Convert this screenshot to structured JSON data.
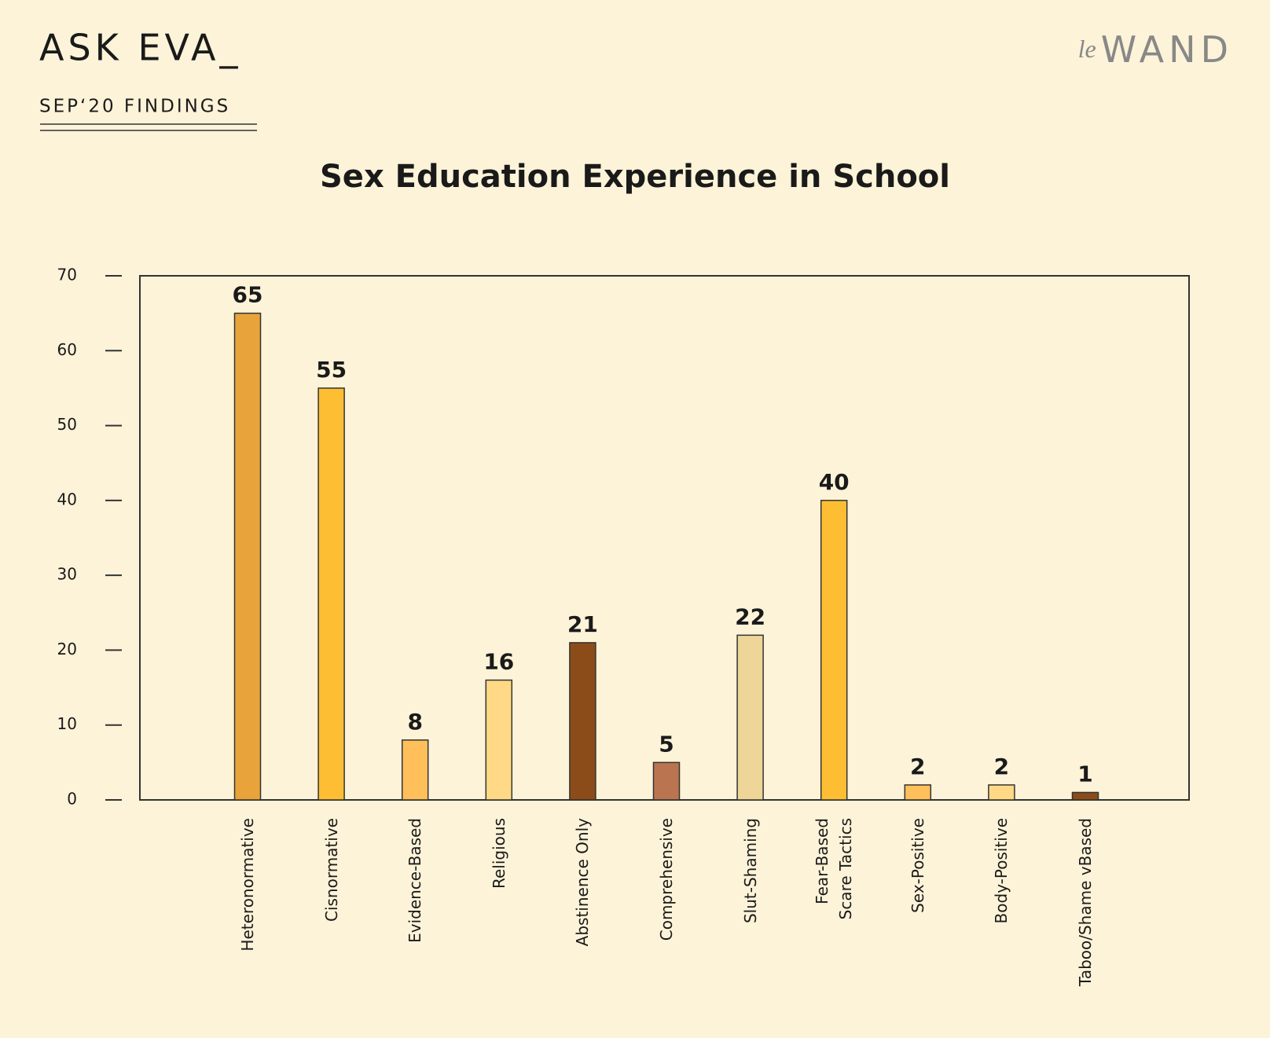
{
  "header": {
    "brand": "ASK EVA_",
    "subtitle": "SEP‘20 FINDINGS",
    "logo_prefix": "le",
    "logo": "WAND"
  },
  "chart_data": {
    "type": "bar",
    "title": "Sex Education Experience in School",
    "categories": [
      "Heteronormative",
      "Cisnormative",
      "Evidence-Based",
      "Religious",
      "Abstinence Only",
      "Comprehensive",
      "Slut-Shaming",
      "Fear-Based\nScare Tactics",
      "Sex-Positive",
      "Body-Positive",
      "Taboo/Shame vBased"
    ],
    "values": [
      65,
      55,
      8,
      16,
      21,
      5,
      22,
      40,
      2,
      2,
      1
    ],
    "colors": [
      "#E8A33A",
      "#FDBE33",
      "#FFBF5A",
      "#FFD985",
      "#8B4C1A",
      "#BA7550",
      "#EED699",
      "#FDBE33",
      "#FFBF5A",
      "#FFD985",
      "#8B4C1A"
    ],
    "ylim": [
      0,
      70
    ],
    "yticks": [
      0,
      10,
      20,
      30,
      40,
      50,
      60,
      70
    ],
    "grid": false
  }
}
